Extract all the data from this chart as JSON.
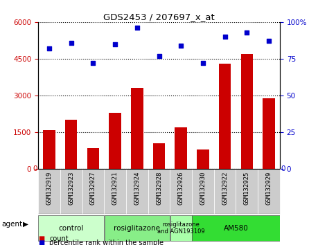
{
  "title": "GDS2453 / 207697_x_at",
  "samples": [
    "GSM132919",
    "GSM132923",
    "GSM132927",
    "GSM132921",
    "GSM132924",
    "GSM132928",
    "GSM132926",
    "GSM132930",
    "GSM132922",
    "GSM132925",
    "GSM132929"
  ],
  "counts": [
    1600,
    2000,
    850,
    2300,
    3300,
    1050,
    1700,
    800,
    4300,
    4700,
    2900
  ],
  "percentiles": [
    82,
    86,
    72,
    85,
    96,
    77,
    84,
    72,
    90,
    93,
    87
  ],
  "bar_color": "#cc0000",
  "dot_color": "#0000cc",
  "ylim_left": [
    0,
    6000
  ],
  "ylim_right": [
    0,
    100
  ],
  "yticks_left": [
    0,
    1500,
    3000,
    4500,
    6000
  ],
  "yticks_right": [
    0,
    25,
    50,
    75,
    100
  ],
  "groups": [
    {
      "label": "control",
      "start": 0,
      "end": 3,
      "color": "#ccffcc"
    },
    {
      "label": "rosiglitazone",
      "start": 3,
      "end": 6,
      "color": "#88ee88"
    },
    {
      "label": "rosiglitazone\nand AGN193109",
      "start": 6,
      "end": 7,
      "color": "#aaffaa"
    },
    {
      "label": "AM580",
      "start": 7,
      "end": 11,
      "color": "#33dd33"
    }
  ],
  "agent_label": "agent",
  "legend_count_label": "count",
  "legend_pct_label": "percentile rank within the sample",
  "background_color": "#ffffff",
  "tick_bg_color": "#cccccc",
  "chart_bg": "#ffffff"
}
